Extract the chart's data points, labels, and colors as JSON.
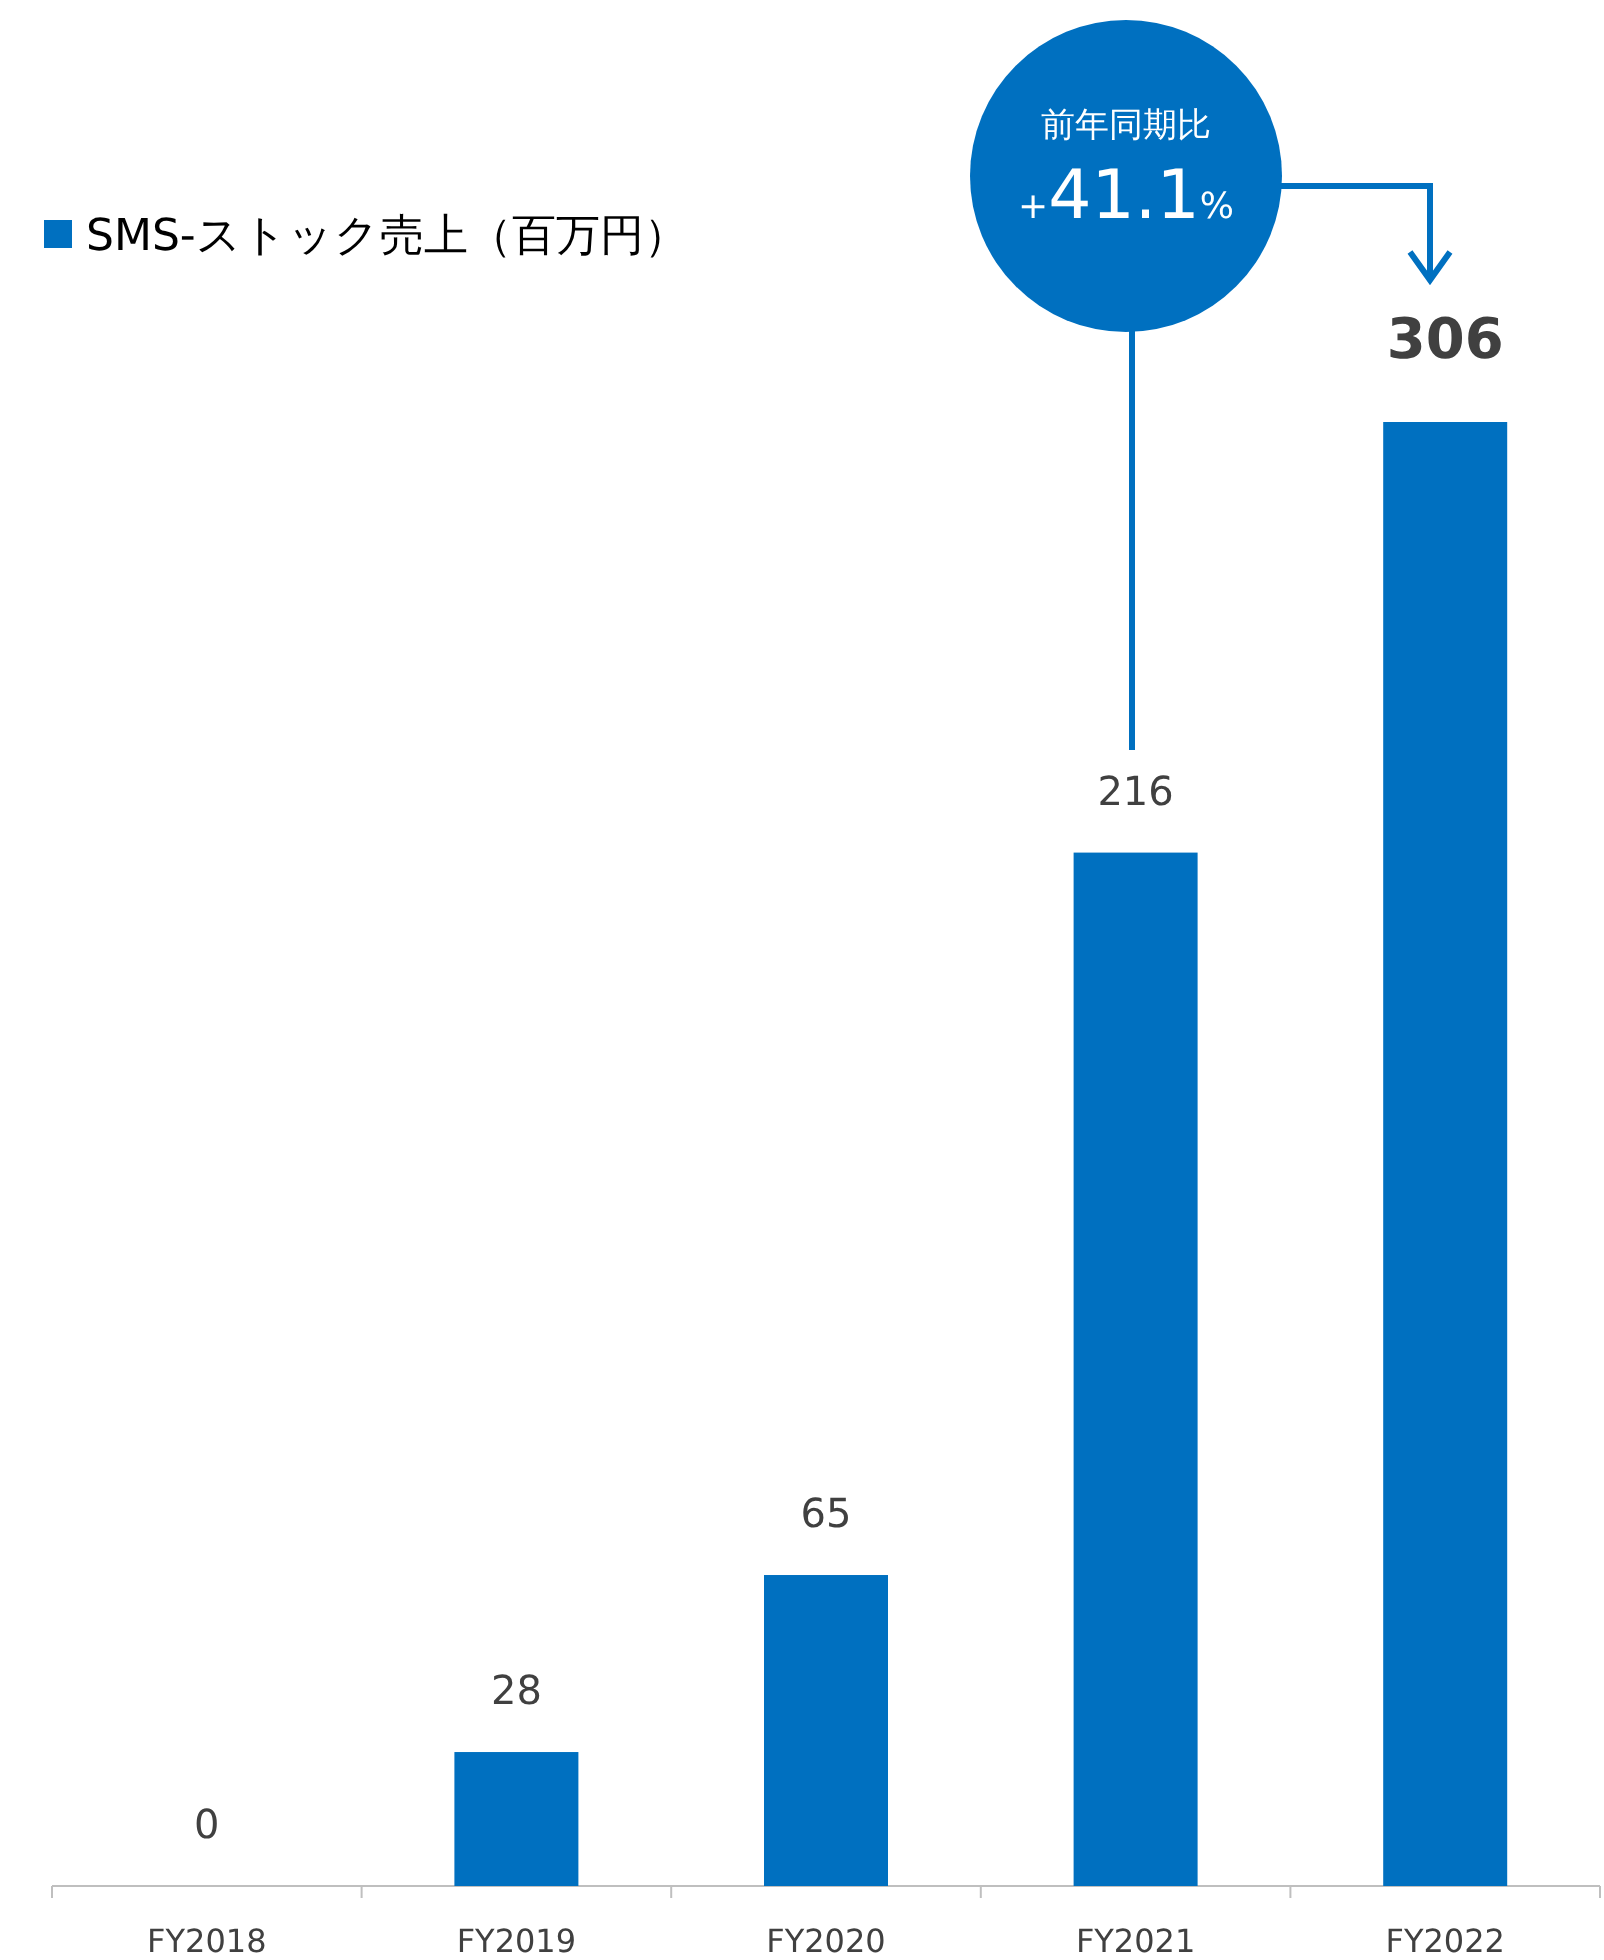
{
  "chart_data": {
    "type": "bar",
    "categories": [
      "FY2018",
      "FY2019",
      "FY2020",
      "FY2021",
      "FY2022"
    ],
    "series": [
      {
        "name": "SMS-ストック売上（百万円）",
        "color": "#0070c0",
        "values": [
          0,
          28,
          65,
          216,
          306
        ]
      }
    ],
    "data_labels": true,
    "legend": "top left",
    "annotations": [
      "前年同期比",
      "+41.1%"
    ]
  }
}
